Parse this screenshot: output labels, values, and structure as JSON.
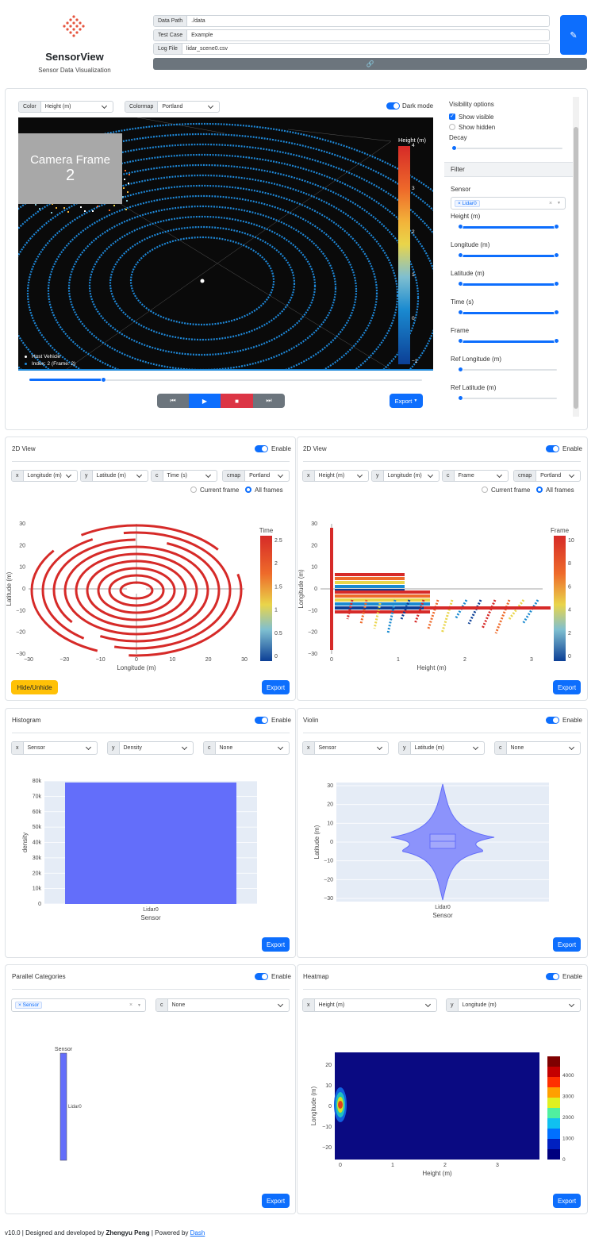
{
  "header": {
    "app_title": "SensorView",
    "subtitle": "Sensor Data Visualization",
    "fields": [
      {
        "label": "Data Path",
        "value": "./data"
      },
      {
        "label": "Test Case",
        "value": "Example"
      },
      {
        "label": "Log File",
        "value": "lidar_scene0.csv"
      }
    ]
  },
  "scene": {
    "color_label": "Color",
    "color_value": "Height (m)",
    "colormap_label": "Colormap",
    "colormap_value": "Portland",
    "dark_mode": "Dark mode",
    "camera_frame_title": "Camera Frame",
    "camera_frame_num": "2",
    "legend_host": "Host Vehicle",
    "legend_index": "Index: 2 (Frame: 2)",
    "colorbar": {
      "title": "Height (m)",
      "ticks": [
        "4",
        "3",
        "2",
        "1",
        "0",
        "−1"
      ]
    },
    "export": "Export",
    "frame_slider": 0.19
  },
  "side": {
    "visibility_title": "Visibility options",
    "show_visible": "Show visible",
    "show_hidden": "Show hidden",
    "decay": "Decay",
    "filter": "Filter",
    "sensor": "Sensor",
    "sensor_tag": "Lidar0",
    "ranges": [
      "Height (m)",
      "Longitude (m)",
      "Latitude (m)",
      "Time (s)",
      "Frame"
    ],
    "refs": [
      "Ref Longitude (m)",
      "Ref Latitude (m)"
    ]
  },
  "panels": {
    "p2d_left": {
      "title": "2D View",
      "enable": "Enable",
      "x": "Longitude (m)",
      "y": "Latitude (m)",
      "c": "Time (s)",
      "cmap": "Portland",
      "current": "Current frame",
      "all": "All frames",
      "hide": "Hide/Unhide",
      "export": "Export"
    },
    "p2d_right": {
      "title": "2D View",
      "enable": "Enable",
      "x": "Height (m)",
      "y": "Longitude (m)",
      "c": "Frame",
      "cmap": "Portland",
      "current": "Current frame",
      "all": "All frames",
      "export": "Export"
    },
    "hist": {
      "title": "Histogram",
      "enable": "Enable",
      "x": "Sensor",
      "y": "Density",
      "c": "None",
      "export": "Export"
    },
    "violin": {
      "title": "Violin",
      "enable": "Enable",
      "x": "Sensor",
      "y": "Latitude (m)",
      "c": "None",
      "export": "Export"
    },
    "parcat": {
      "title": "Parallel Categories",
      "enable": "Enable",
      "tag": "Sensor",
      "c": "None",
      "export": "Export"
    },
    "heatmap": {
      "title": "Heatmap",
      "enable": "Enable",
      "x": "Height (m)",
      "y": "Longitude (m)",
      "export": "Export"
    }
  },
  "chart_data": [
    {
      "type": "scatter",
      "xlabel": "Longitude (m)",
      "ylabel": "Latitude (m)",
      "xticks": [
        "−30",
        "−20",
        "−10",
        "0",
        "10",
        "20",
        "30"
      ],
      "yticks": [
        "30",
        "20",
        "10",
        "0",
        "−10",
        "−20",
        "−30"
      ],
      "colorbar_title": "Time",
      "colorbar_ticks": [
        "2.5",
        "2",
        "1.5",
        "1",
        "0.5",
        "0"
      ]
    },
    {
      "type": "scatter",
      "xlabel": "Height (m)",
      "ylabel": "Longitude (m)",
      "xticks": [
        "0",
        "1",
        "2",
        "3"
      ],
      "yticks": [
        "30",
        "20",
        "10",
        "0",
        "−10",
        "−20",
        "−30"
      ],
      "colorbar_title": "Frame",
      "colorbar_ticks": [
        "10",
        "8",
        "6",
        "4",
        "2",
        "0"
      ]
    },
    {
      "type": "bar",
      "categories": [
        "Lidar0"
      ],
      "values": [
        79000
      ],
      "xlabel": "Sensor",
      "ylabel": "density",
      "ylim": [
        0,
        80000
      ],
      "yticks": [
        "80k",
        "70k",
        "60k",
        "50k",
        "40k",
        "30k",
        "20k",
        "10k",
        "0"
      ]
    },
    {
      "type": "violin",
      "categories": [
        "Lidar0"
      ],
      "xlabel": "Sensor",
      "ylabel": "Latitude (m)",
      "yticks": [
        "30",
        "20",
        "10",
        "0",
        "−10",
        "−20",
        "−30"
      ]
    },
    {
      "type": "parcat",
      "dimension": "Sensor",
      "categories": [
        "Lidar0"
      ]
    },
    {
      "type": "heatmap",
      "xlabel": "Height (m)",
      "ylabel": "Longitude (m)",
      "xticks": [
        "0",
        "1",
        "2",
        "3"
      ],
      "yticks": [
        "20",
        "10",
        "0",
        "−10",
        "−20"
      ],
      "colorbar_ticks": [
        "4000",
        "3000",
        "2000",
        "1000",
        "0"
      ]
    }
  ],
  "footer": {
    "version": "v10.0 | Designed and developed by ",
    "author": "Zhengyu Peng",
    "powered": " | Powered by ",
    "link": "Dash"
  }
}
